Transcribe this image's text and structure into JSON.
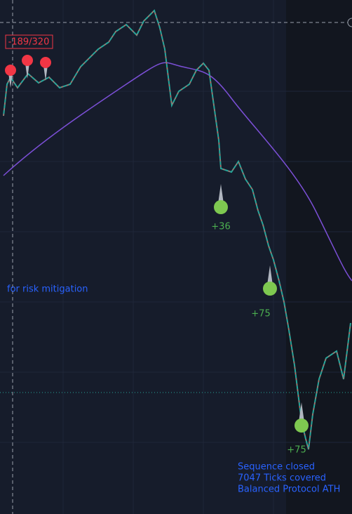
{
  "header": {
    "counter": "-189/320"
  },
  "annotations": {
    "side_note": "for risk mitigation"
  },
  "trades": [
    {
      "label": "+36"
    },
    {
      "label": "+75"
    },
    {
      "label": "+75"
    }
  ],
  "summary": {
    "lines": [
      "Sequence closed",
      "7047 Ticks covered",
      "Balanced Protocol ATH"
    ]
  }
}
